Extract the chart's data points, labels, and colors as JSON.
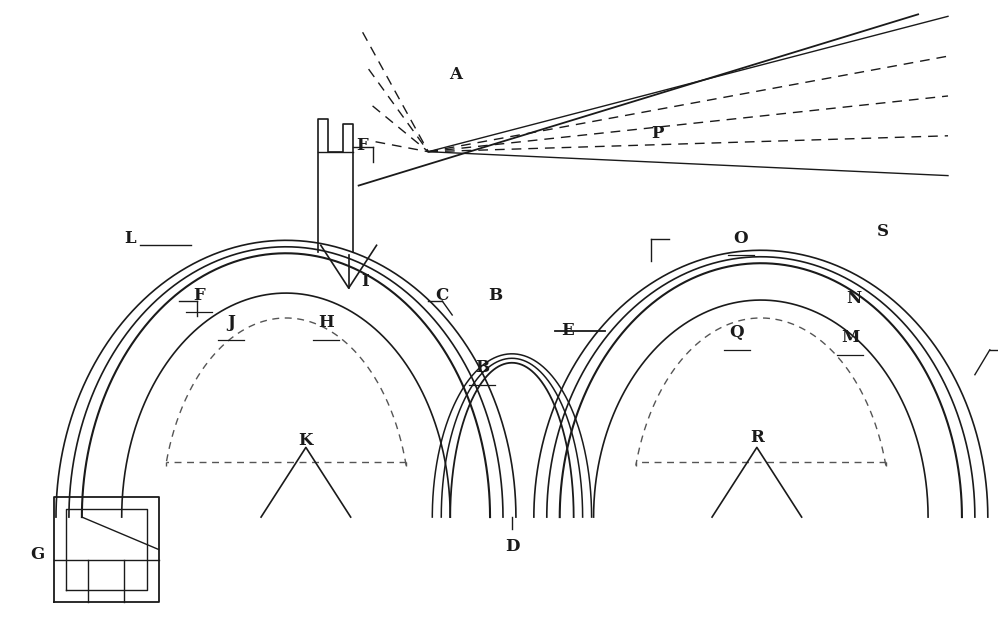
{
  "bg_color": "#ffffff",
  "line_color": "#1a1a1a",
  "dashed_color": "#555555",
  "figsize": [
    10.0,
    6.23
  ],
  "dpi": 100,
  "xlim": [
    0,
    10
  ],
  "ylim": [
    0,
    6.23
  ]
}
